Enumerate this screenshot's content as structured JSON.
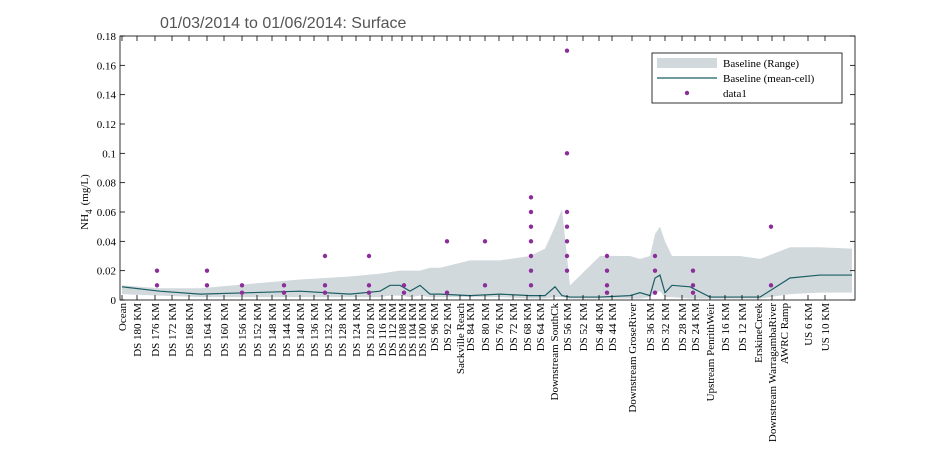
{
  "chart_data": {
    "type": "line",
    "title": "01/03/2014 to 01/06/2014: Surface",
    "y_label": [
      "NH",
      "4",
      "(mg/L)"
    ],
    "xlim": [
      0,
      735
    ],
    "ylim": [
      0,
      0.18
    ],
    "yticks": [
      0,
      0.02,
      0.04,
      0.06,
      0.08,
      0.1,
      0.12,
      0.14,
      0.16,
      0.18
    ],
    "xticks": [
      {
        "value": 2,
        "label": "Ocean"
      },
      {
        "value": 17,
        "label": "DS 180 KM"
      },
      {
        "value": 35,
        "label": "DS 176 KM"
      },
      {
        "value": 52,
        "label": "DS 172 KM"
      },
      {
        "value": 69,
        "label": "DS 168 KM"
      },
      {
        "value": 87,
        "label": "DS 164 KM"
      },
      {
        "value": 104,
        "label": "DS 160 KM"
      },
      {
        "value": 122,
        "label": "DS 156 KM"
      },
      {
        "value": 137,
        "label": "DS 152 KM"
      },
      {
        "value": 152,
        "label": "DS 148 KM"
      },
      {
        "value": 166,
        "label": "DS 144 KM"
      },
      {
        "value": 180,
        "label": "DS 140 KM"
      },
      {
        "value": 194,
        "label": "DS 136 KM"
      },
      {
        "value": 208,
        "label": "DS 132 KM"
      },
      {
        "value": 222,
        "label": "DS 128 KM"
      },
      {
        "value": 236,
        "label": "DS 124 KM"
      },
      {
        "value": 250,
        "label": "DS 120 KM"
      },
      {
        "value": 262,
        "label": "DS 116 KM"
      },
      {
        "value": 272,
        "label": "DS 112 KM"
      },
      {
        "value": 282,
        "label": "DS 108 KM"
      },
      {
        "value": 292,
        "label": "DS 104 KM"
      },
      {
        "value": 302,
        "label": "DS 100 KM"
      },
      {
        "value": 314,
        "label": "DS 96 KM"
      },
      {
        "value": 327,
        "label": "DS 92 KM"
      },
      {
        "value": 340,
        "label": "Sackville Reach"
      },
      {
        "value": 350,
        "label": "DS 84 KM"
      },
      {
        "value": 365,
        "label": "DS 80 KM"
      },
      {
        "value": 379,
        "label": "DS 76 KM"
      },
      {
        "value": 393,
        "label": "DS 72 KM"
      },
      {
        "value": 407,
        "label": "DS 68 KM"
      },
      {
        "value": 420,
        "label": "DS 64 KM"
      },
      {
        "value": 434,
        "label": "Downstream SouthCk"
      },
      {
        "value": 447,
        "label": "DS 56 KM"
      },
      {
        "value": 463,
        "label": "DS 52 KM"
      },
      {
        "value": 479,
        "label": "DS 48 KM"
      },
      {
        "value": 492,
        "label": "DS 44 KM"
      },
      {
        "value": 512,
        "label": "Downstream GroseRiver"
      },
      {
        "value": 530,
        "label": "DS 36 KM"
      },
      {
        "value": 545,
        "label": "DS 32 KM"
      },
      {
        "value": 562,
        "label": "DS 28 KM"
      },
      {
        "value": 575,
        "label": "DS 24 KM"
      },
      {
        "value": 590,
        "label": "Upstream PenrithWeir"
      },
      {
        "value": 605,
        "label": "DS 16 KM"
      },
      {
        "value": 622,
        "label": "DS 12 KM"
      },
      {
        "value": 638,
        "label": "ErskineCreek"
      },
      {
        "value": 652,
        "label": "Downstream WarragambaRiver"
      },
      {
        "value": 664,
        "label": "AWRC Ramp"
      },
      {
        "value": 688,
        "label": "US 6 KM"
      },
      {
        "value": 705,
        "label": "US 10 KM"
      }
    ],
    "legend": "northeast",
    "series": [
      {
        "name": "Baseline (Range)",
        "kind": "area",
        "color": "#d2d9dd",
        "x": [
          2,
          40,
          80,
          130,
          180,
          230,
          260,
          270,
          280,
          290,
          300,
          310,
          320,
          350,
          380,
          410,
          425,
          435,
          442,
          450,
          480,
          510,
          520,
          530,
          535,
          540,
          545,
          552,
          570,
          590,
          620,
          640,
          670,
          700,
          732
        ],
        "values": [
          0.01,
          0.008,
          0.008,
          0.011,
          0.014,
          0.016,
          0.018,
          0.019,
          0.02,
          0.02,
          0.02,
          0.022,
          0.022,
          0.027,
          0.027,
          0.03,
          0.035,
          0.05,
          0.062,
          0.01,
          0.03,
          0.03,
          0.028,
          0.03,
          0.045,
          0.05,
          0.04,
          0.03,
          0.03,
          0.03,
          0.03,
          0.028,
          0.036,
          0.036,
          0.035
        ],
        "lower": [
          0.004,
          0.003,
          0.002,
          0.002,
          0.002,
          0.002,
          0.002,
          0.003,
          0.003,
          0.002,
          0.003,
          0.002,
          0.002,
          0.002,
          0.002,
          0.001,
          0.001,
          0.002,
          0.002,
          0.001,
          0.001,
          0.001,
          0.001,
          0.002,
          0.005,
          0.006,
          0.002,
          0.002,
          0.001,
          0.001,
          0.001,
          0.001,
          0.004,
          0.005,
          0.005
        ]
      },
      {
        "name": "Baseline (mean-cell)",
        "kind": "line",
        "color": "#1b5e63",
        "x": [
          2,
          40,
          80,
          130,
          180,
          230,
          260,
          270,
          280,
          290,
          300,
          310,
          320,
          350,
          380,
          410,
          425,
          435,
          442,
          450,
          480,
          510,
          520,
          530,
          535,
          540,
          545,
          552,
          570,
          590,
          620,
          640,
          670,
          700,
          732
        ],
        "values": [
          0.009,
          0.006,
          0.004,
          0.005,
          0.006,
          0.004,
          0.006,
          0.01,
          0.01,
          0.006,
          0.01,
          0.004,
          0.004,
          0.003,
          0.004,
          0.003,
          0.003,
          0.009,
          0.003,
          0.002,
          0.002,
          0.003,
          0.005,
          0.003,
          0.015,
          0.017,
          0.005,
          0.01,
          0.009,
          0.002,
          0.002,
          0.002,
          0.015,
          0.017,
          0.017
        ]
      },
      {
        "name": "data1",
        "kind": "scatter",
        "color": "#8b2e9a",
        "x": [
          37,
          37,
          87,
          87,
          122,
          122,
          164,
          164,
          205,
          205,
          205,
          249,
          249,
          249,
          284,
          284,
          327,
          327,
          365,
          365,
          411,
          411,
          411,
          411,
          411,
          411,
          411,
          447,
          447,
          447,
          447,
          447,
          447,
          447,
          487,
          487,
          487,
          487,
          535,
          535,
          535,
          573,
          573,
          573,
          651,
          651
        ],
        "values": [
          0.02,
          0.01,
          0.02,
          0.01,
          0.01,
          0.005,
          0.01,
          0.005,
          0.03,
          0.01,
          0.005,
          0.03,
          0.01,
          0.005,
          0.01,
          0.005,
          0.04,
          0.005,
          0.04,
          0.01,
          0.07,
          0.06,
          0.05,
          0.04,
          0.03,
          0.02,
          0.01,
          0.17,
          0.1,
          0.06,
          0.05,
          0.04,
          0.03,
          0.02,
          0.03,
          0.02,
          0.01,
          0.005,
          0.03,
          0.02,
          0.005,
          0.02,
          0.01,
          0.005,
          0.05,
          0.01
        ]
      }
    ]
  }
}
